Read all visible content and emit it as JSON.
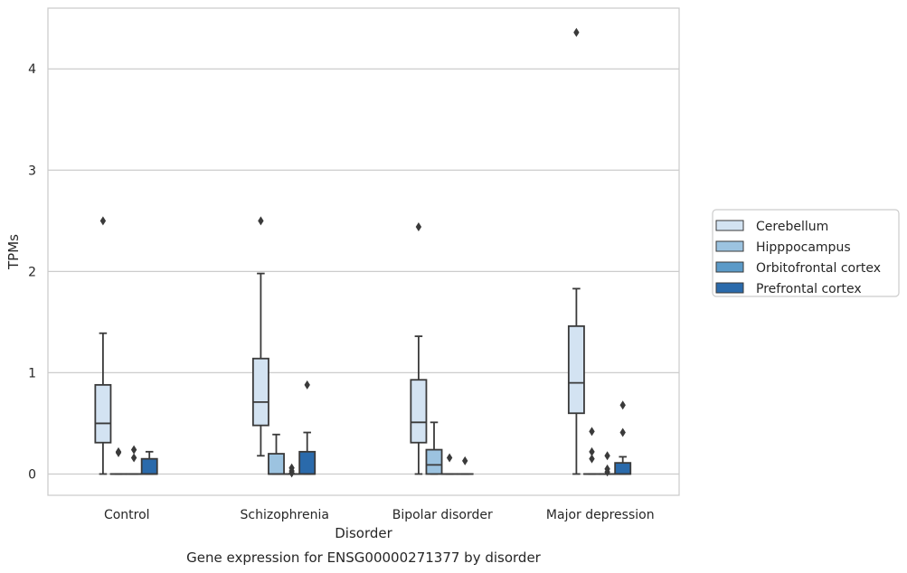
{
  "caption": "Gene expression for ENSG00000271377 by disorder",
  "chart_data": {
    "type": "box",
    "xlabel": "Disorder",
    "ylabel": "TPMs",
    "ylim": [
      -0.21,
      4.6
    ],
    "yticks": [
      0,
      1,
      2,
      3,
      4
    ],
    "grid": "horizontal",
    "legend_position": "right",
    "categories": [
      "Control",
      "Schizophrenia",
      "Bipolar disorder",
      "Major depression"
    ],
    "series": [
      {
        "name": "Cerebellum",
        "color": "#d3e3f2",
        "boxes": [
          {
            "whislo": 0.0,
            "q1": 0.31,
            "med": 0.5,
            "q3": 0.88,
            "whishi": 1.39,
            "fliers": [
              2.5
            ]
          },
          {
            "whislo": 0.18,
            "q1": 0.48,
            "med": 0.71,
            "q3": 1.14,
            "whishi": 1.98,
            "fliers": [
              2.5
            ]
          },
          {
            "whislo": 0.0,
            "q1": 0.31,
            "med": 0.51,
            "q3": 0.93,
            "whishi": 1.36,
            "fliers": [
              2.44
            ]
          },
          {
            "whislo": 0.0,
            "q1": 0.6,
            "med": 0.9,
            "q3": 1.46,
            "whishi": 1.83,
            "fliers": [
              4.36
            ]
          }
        ]
      },
      {
        "name": "Hipppocampus",
        "color": "#9cc3e0",
        "boxes": [
          {
            "whislo": 0.0,
            "q1": 0.0,
            "med": 0.0,
            "q3": 0.0,
            "whishi": 0.0,
            "fliers": [
              0.22,
              0.21
            ]
          },
          {
            "whislo": 0.0,
            "q1": 0.0,
            "med": 0.0,
            "q3": 0.2,
            "whishi": 0.39,
            "fliers": []
          },
          {
            "whislo": 0.0,
            "q1": 0.0,
            "med": 0.09,
            "q3": 0.24,
            "whishi": 0.51,
            "fliers": []
          },
          {
            "whislo": 0.0,
            "q1": 0.0,
            "med": 0.0,
            "q3": 0.0,
            "whishi": 0.0,
            "fliers": [
              0.42,
              0.22,
              0.15
            ]
          }
        ]
      },
      {
        "name": "Orbitofrontal cortex",
        "color": "#5b9ac8",
        "boxes": [
          {
            "whislo": 0.0,
            "q1": 0.0,
            "med": 0.0,
            "q3": 0.0,
            "whishi": 0.0,
            "fliers": [
              0.24,
              0.16
            ]
          },
          {
            "whislo": 0.0,
            "q1": 0.0,
            "med": 0.0,
            "q3": 0.0,
            "whishi": 0.0,
            "fliers": [
              0.06,
              0.03,
              0.01
            ]
          },
          {
            "whislo": 0.0,
            "q1": 0.0,
            "med": 0.0,
            "q3": 0.0,
            "whishi": 0.0,
            "fliers": [
              0.16
            ]
          },
          {
            "whislo": 0.0,
            "q1": 0.0,
            "med": 0.0,
            "q3": 0.0,
            "whishi": 0.0,
            "fliers": [
              0.18,
              0.05,
              0.02
            ]
          }
        ]
      },
      {
        "name": "Prefrontal cortex",
        "color": "#2a6aab",
        "boxes": [
          {
            "whislo": 0.0,
            "q1": 0.0,
            "med": 0.0,
            "q3": 0.15,
            "whishi": 0.22,
            "fliers": []
          },
          {
            "whislo": 0.0,
            "q1": 0.0,
            "med": 0.0,
            "q3": 0.22,
            "whishi": 0.41,
            "fliers": [
              0.88
            ]
          },
          {
            "whislo": 0.0,
            "q1": 0.0,
            "med": 0.0,
            "q3": 0.0,
            "whishi": 0.0,
            "fliers": [
              0.13
            ]
          },
          {
            "whislo": 0.0,
            "q1": 0.0,
            "med": 0.0,
            "q3": 0.11,
            "whishi": 0.17,
            "fliers": [
              0.68,
              0.41
            ]
          }
        ]
      }
    ]
  }
}
